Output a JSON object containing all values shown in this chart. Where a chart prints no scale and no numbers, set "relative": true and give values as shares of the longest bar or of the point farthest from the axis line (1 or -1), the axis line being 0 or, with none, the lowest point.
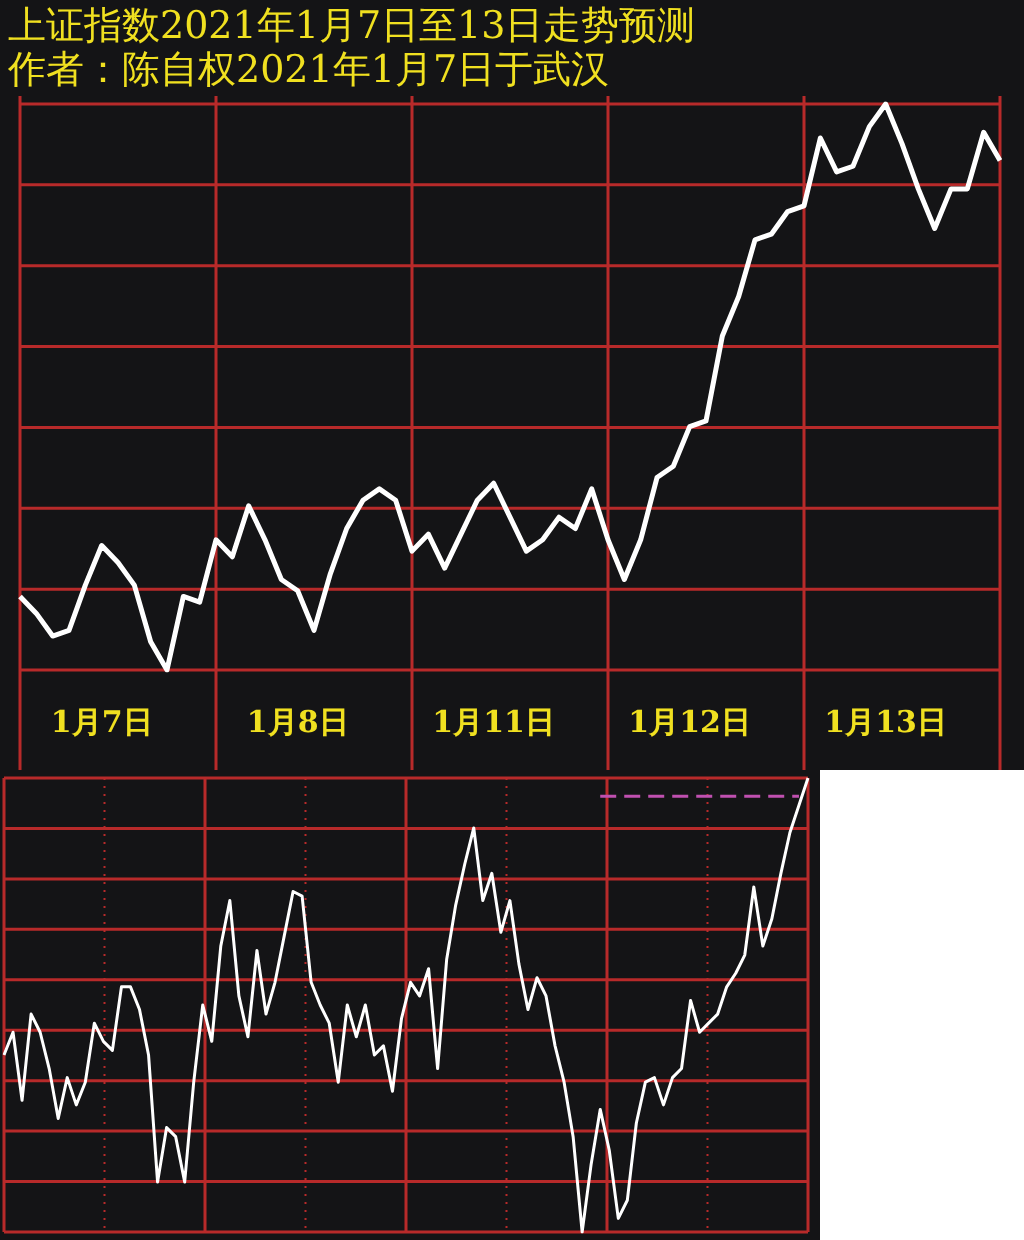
{
  "chart_data": [
    {
      "type": "line",
      "title": "上证指数2021年1月7日至13日走势预测",
      "subtitle": "作者：陈自权2021年1月7日于武汉",
      "relative": true,
      "grid": true,
      "marker": "none",
      "tick_labels": "x",
      "categories": [
        null,
        null,
        null,
        null,
        null,
        "1月7日",
        null,
        null,
        null,
        null,
        null,
        null,
        null,
        null,
        null,
        null,
        null,
        "1月8日",
        null,
        null,
        null,
        null,
        null,
        null,
        null,
        null,
        null,
        null,
        null,
        "1月11日",
        null,
        null,
        null,
        null,
        null,
        null,
        null,
        null,
        null,
        null,
        null,
        "1月12日",
        null,
        null,
        null,
        null,
        null,
        null,
        null,
        null,
        null,
        null,
        null,
        "1月13日",
        null,
        null,
        null,
        null,
        null,
        null,
        null
      ],
      "series": [
        {
          "color": "#ffffff",
          "values": [
            0.13,
            0.1,
            0.06,
            0.07,
            0.15,
            0.22,
            0.19,
            0.15,
            0.05,
            0,
            0.13,
            0.12,
            0.23,
            0.2,
            0.29,
            0.23,
            0.16,
            0.14,
            0.07,
            0.17,
            0.25,
            0.3,
            0.32,
            0.3,
            0.21,
            0.24,
            0.18,
            0.24,
            0.3,
            0.33,
            0.27,
            0.21,
            0.23,
            0.27,
            0.25,
            0.32,
            0.23,
            0.16,
            0.23,
            0.34,
            0.36,
            0.43,
            0.44,
            0.59,
            0.66,
            0.76,
            0.77,
            0.81,
            0.82,
            0.94,
            0.88,
            0.89,
            0.96,
            1,
            0.93,
            0.85,
            0.78,
            0.85,
            0.85,
            0.95,
            0.9
          ]
        }
      ]
    },
    {
      "type": "line",
      "relative": true,
      "grid": true,
      "marker": "none",
      "tick_labels": false,
      "categories": [
        null,
        null,
        null,
        null,
        null,
        null,
        null,
        null,
        null,
        null,
        null,
        null,
        null,
        null,
        null,
        null,
        null,
        null,
        null,
        null,
        null,
        null,
        null,
        null,
        null,
        null,
        null,
        null,
        null,
        null,
        null,
        null,
        null,
        null,
        null,
        null,
        null,
        null,
        null,
        null,
        null,
        null,
        null,
        null,
        null,
        null,
        null,
        null,
        null,
        null,
        null,
        null,
        null,
        null,
        null,
        null,
        null,
        null,
        null,
        null,
        null,
        null,
        null,
        null,
        null,
        null,
        null,
        null,
        null,
        null,
        null,
        null,
        null,
        null,
        null,
        null,
        null,
        null,
        null,
        null,
        null,
        null,
        null,
        null,
        null,
        null,
        null,
        null,
        null,
        null
      ],
      "series": [
        {
          "color": "#ffffff",
          "values": [
            0.39,
            0.44,
            0.29,
            0.48,
            0.44,
            0.36,
            0.25,
            0.34,
            0.28,
            0.33,
            0.46,
            0.42,
            0.4,
            0.54,
            0.54,
            0.49,
            0.39,
            0.11,
            0.23,
            0.21,
            0.11,
            0.33,
            0.5,
            0.42,
            0.63,
            0.73,
            0.52,
            0.43,
            0.62,
            0.48,
            0.55,
            0.65,
            0.75,
            0.74,
            0.55,
            0.5,
            0.46,
            0.33,
            0.5,
            0.43,
            0.5,
            0.39,
            0.41,
            0.31,
            0.47,
            0.55,
            0.52,
            0.58,
            0.36,
            0.6,
            0.72,
            0.81,
            0.89,
            0.73,
            0.79,
            0.66,
            0.73,
            0.59,
            0.49,
            0.56,
            0.52,
            0.41,
            0.33,
            0.21,
            0,
            0.15,
            0.27,
            0.18,
            0.03,
            0.07,
            0.24,
            0.33,
            0.34,
            0.28,
            0.34,
            0.36,
            0.51,
            0.44,
            0.46,
            0.48,
            0.54,
            0.57,
            0.61,
            0.76,
            0.63,
            0.69,
            0.79,
            0.88,
            0.94,
            1
          ]
        },
        {
          "color": "#c050b0",
          "line_style": "dashed",
          "values": [
            null,
            null,
            null,
            null,
            null,
            null,
            null,
            null,
            null,
            null,
            null,
            null,
            null,
            null,
            null,
            null,
            null,
            null,
            null,
            null,
            null,
            null,
            null,
            null,
            null,
            null,
            null,
            null,
            null,
            null,
            null,
            null,
            null,
            null,
            null,
            null,
            null,
            null,
            null,
            null,
            null,
            null,
            null,
            null,
            null,
            null,
            null,
            null,
            null,
            null,
            null,
            null,
            null,
            null,
            null,
            null,
            null,
            null,
            null,
            null,
            null,
            null,
            null,
            null,
            null,
            null,
            0.96,
            0.96,
            0.96,
            0.96,
            0.96,
            0.96,
            0.96,
            0.96,
            0.96,
            0.96,
            0.96,
            0.96,
            0.96,
            0.96,
            0.96,
            0.96,
            0.96,
            0.96,
            0.96,
            0.96,
            0.96,
            0.96,
            0.96,
            null
          ]
        }
      ]
    }
  ]
}
